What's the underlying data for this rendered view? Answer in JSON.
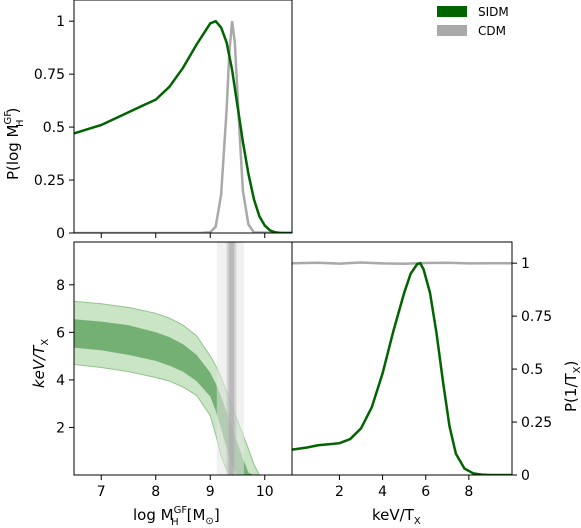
{
  "colors": {
    "sidm": "#006400",
    "cdm": "#a9a9a9",
    "band_outer": "#c8e3c4",
    "band_inner": "#6aa86a",
    "cdm_band_outer": "#e6e6e6",
    "cdm_band_inner": "#bdbdbd"
  },
  "legend": {
    "placement": "top-right",
    "items": [
      {
        "label": "SIDM",
        "color": "#006400"
      },
      {
        "label": "CDM",
        "color": "#a9a9a9"
      }
    ]
  },
  "labels": {
    "p_mass_ylabel_prefix": "P(log M",
    "p_mass_ylabel_sup": "GF",
    "p_mass_ylabel_sub": "H",
    "p_mass_ylabel_suffix": ")",
    "kev_ylabel": "keV/T",
    "kev_ylabel_sub": "X",
    "mass_xlabel_prefix": "log M",
    "mass_xlabel_sup": "GF",
    "mass_xlabel_sub": "H",
    "mass_xlabel_suffix": "[M",
    "mass_xlabel_sun": "⊙",
    "mass_xlabel_close": "]",
    "kev_xlabel": "keV/T",
    "kev_xlabel_sub": "X",
    "p_kev_ylabel_prefix": "P(1/T",
    "p_kev_ylabel_sub": "X",
    "p_kev_ylabel_suffix": ")"
  },
  "chart_data": [
    {
      "type": "line",
      "panel": "top-left",
      "xlim": [
        6.5,
        10.5
      ],
      "ylim": [
        0,
        1.1
      ],
      "yticks": [
        "0",
        "0.25",
        "0.5",
        "0.75",
        "1"
      ],
      "ytick_values": [
        0,
        0.25,
        0.5,
        0.75,
        1
      ],
      "series": [
        {
          "name": "SIDM",
          "x": [
            6.5,
            6.75,
            7.0,
            7.25,
            7.5,
            7.75,
            8.0,
            8.25,
            8.5,
            8.75,
            9.0,
            9.1,
            9.2,
            9.3,
            9.4,
            9.5,
            9.6,
            9.7,
            9.8,
            9.9,
            10.0,
            10.1,
            10.2,
            10.3,
            10.5
          ],
          "y": [
            0.47,
            0.49,
            0.51,
            0.54,
            0.57,
            0.6,
            0.63,
            0.69,
            0.78,
            0.89,
            0.99,
            1.0,
            0.97,
            0.9,
            0.77,
            0.6,
            0.43,
            0.28,
            0.16,
            0.08,
            0.035,
            0.012,
            0.003,
            0.0,
            0.0
          ]
        },
        {
          "name": "CDM",
          "x": [
            6.5,
            8.8,
            9.0,
            9.1,
            9.2,
            9.3,
            9.35,
            9.4,
            9.45,
            9.5,
            9.55,
            9.6,
            9.7,
            9.8,
            10.5
          ],
          "y": [
            0,
            0,
            0.004,
            0.03,
            0.18,
            0.58,
            0.85,
            1.0,
            0.9,
            0.66,
            0.42,
            0.2,
            0.04,
            0.003,
            0
          ]
        }
      ]
    },
    {
      "type": "area",
      "panel": "bottom-left",
      "xlim": [
        6.5,
        10.5
      ],
      "ylim": [
        0,
        9.8
      ],
      "xticks": [
        "7",
        "8",
        "9",
        "10"
      ],
      "xtick_values": [
        7,
        8,
        9,
        10
      ],
      "yticks": [
        "2",
        "4",
        "6",
        "8"
      ],
      "ytick_values": [
        2,
        4,
        6,
        8
      ],
      "x": [
        6.5,
        7.0,
        7.5,
        8.0,
        8.25,
        8.5,
        8.75,
        9.0,
        9.1,
        9.2,
        9.3,
        9.4,
        9.5,
        9.6,
        9.7,
        9.8,
        9.9,
        10.0
      ],
      "bands": [
        {
          "level": "outer",
          "lower": [
            4.65,
            4.52,
            4.35,
            4.1,
            3.95,
            3.7,
            3.35,
            2.5,
            1.7,
            0.8,
            0.2,
            0,
            null,
            null,
            null,
            null,
            null,
            null
          ],
          "upper": [
            7.3,
            7.2,
            7.05,
            6.8,
            6.6,
            6.3,
            5.85,
            5.0,
            4.6,
            4.1,
            3.5,
            2.9,
            2.3,
            1.7,
            1.1,
            0.45,
            0,
            0
          ]
        },
        {
          "level": "inner",
          "lower": [
            5.35,
            5.25,
            5.05,
            4.8,
            4.6,
            4.35,
            3.95,
            3.3,
            2.7,
            1.95,
            1.1,
            0.4,
            0,
            null,
            null,
            null,
            null,
            null
          ],
          "upper": [
            6.55,
            6.45,
            6.3,
            6.0,
            5.8,
            5.5,
            5.05,
            4.3,
            3.85,
            3.3,
            2.65,
            2.0,
            1.35,
            0.7,
            0.1,
            0,
            null,
            null
          ]
        }
      ],
      "cdm_vertical_bands": [
        {
          "level": "outer",
          "xmin": 9.12,
          "xmax": 9.62
        },
        {
          "level": "inner",
          "xmin": 9.3,
          "xmax": 9.48
        },
        {
          "level": "core",
          "xmin": 9.34,
          "xmax": 9.44
        }
      ]
    },
    {
      "type": "line",
      "panel": "bottom-right",
      "xlim": [
        -0.2,
        10.0
      ],
      "ylim": [
        0,
        1.1
      ],
      "xticks": [
        "2",
        "4",
        "6",
        "8"
      ],
      "xtick_values": [
        2,
        4,
        6,
        8
      ],
      "yticks": [
        "0",
        "0.25",
        "0.5",
        "0.75",
        "1"
      ],
      "ytick_values": [
        0,
        0.25,
        0.5,
        0.75,
        1
      ],
      "series": [
        {
          "name": "SIDM",
          "x": [
            -0.2,
            0.5,
            1.0,
            1.5,
            2.0,
            2.5,
            3.0,
            3.5,
            4.0,
            4.5,
            5.0,
            5.3,
            5.6,
            5.75,
            5.9,
            6.2,
            6.5,
            6.8,
            7.1,
            7.4,
            7.8,
            8.2,
            8.6,
            9.0,
            10.0
          ],
          "y": [
            0.12,
            0.13,
            0.14,
            0.145,
            0.15,
            0.17,
            0.22,
            0.32,
            0.48,
            0.68,
            0.86,
            0.95,
            0.995,
            1.0,
            0.97,
            0.86,
            0.67,
            0.44,
            0.23,
            0.1,
            0.03,
            0.008,
            0.002,
            0.0,
            0.0
          ]
        },
        {
          "name": "CDM",
          "x": [
            -0.2,
            1,
            2,
            3,
            4,
            5,
            6,
            7,
            8,
            9,
            10
          ],
          "y": [
            1.0,
            1.002,
            0.998,
            1.003,
            0.999,
            0.997,
            1.001,
            1.002,
            0.999,
            1.0,
            1.0
          ]
        }
      ]
    }
  ]
}
